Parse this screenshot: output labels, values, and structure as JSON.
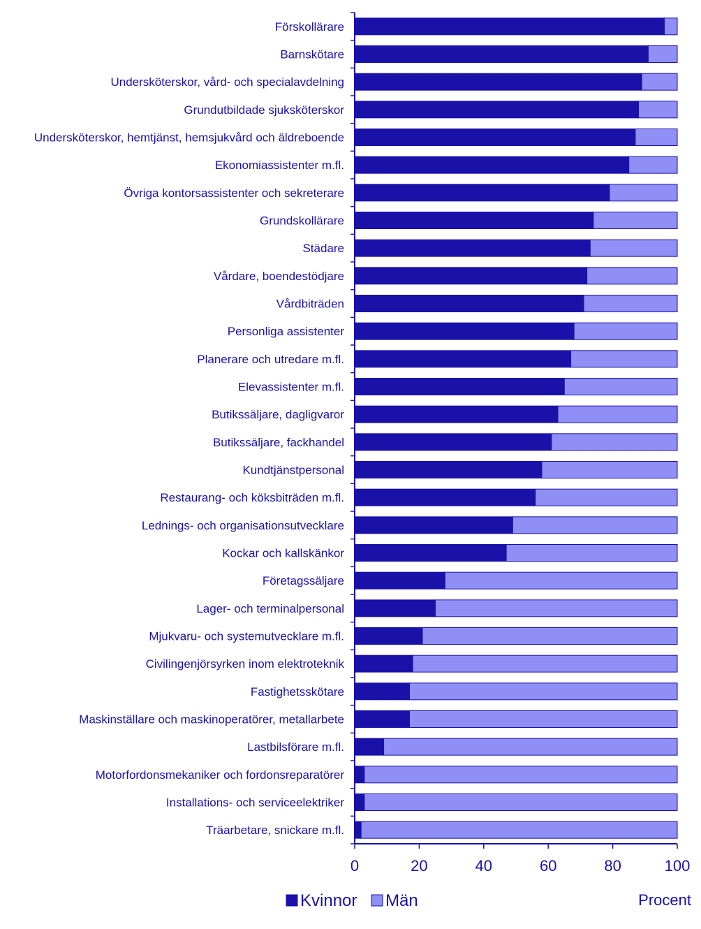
{
  "chart_data": {
    "type": "bar",
    "orientation": "horizontal",
    "stacked": true,
    "title": "",
    "xlabel": "Procent",
    "ylabel": "",
    "xlim": [
      0,
      100
    ],
    "xticks": [
      0,
      20,
      40,
      60,
      80,
      100
    ],
    "grid": false,
    "legend_position": "bottom-left",
    "categories": [
      "Förskollärare",
      "Barnskötare",
      "Undersköterskor, vård- och specialavdelning",
      "Grundutbildade sjuksköterskor",
      "Undersköterskor, hemtjänst, hemsjukvård och äldreboende",
      "Ekonomiassistenter m.fl.",
      "Övriga kontorsassistenter och sekreterare",
      "Grundskollärare",
      "Städare",
      "Vårdare, boendestödjare",
      "Vårdbiträden",
      "Personliga assistenter",
      "Planerare och utredare m.fl.",
      "Elevassistenter m.fl.",
      "Butikssäljare, dagligvaror",
      "Butikssäljare, fackhandel",
      "Kundtjänstpersonal",
      "Restaurang- och köksbiträden m.fl.",
      "Lednings- och organisationsutvecklare",
      "Kockar och kallskänkor",
      "Företagssäljare",
      "Lager- och terminalpersonal",
      "Mjukvaru- och systemutvecklare m.fl.",
      "Civilingenjörsyrken inom elektroteknik",
      "Fastighetsskötare",
      "Maskinställare och maskinoperatörer, metallarbete",
      "Lastbilsförare m.fl.",
      "Motorfordonsmekaniker och fordonsreparatörer",
      "Installations- och serviceelektriker",
      "Träarbetare, snickare m.fl."
    ],
    "series": [
      {
        "name": "Kvinnor",
        "color": "#1a12a8",
        "values": [
          96,
          91,
          89,
          88,
          87,
          85,
          79,
          74,
          73,
          72,
          71,
          68,
          67,
          65,
          63,
          61,
          58,
          56,
          49,
          47,
          28,
          25,
          21,
          18,
          17,
          17,
          9,
          3,
          3,
          2
        ]
      },
      {
        "name": "Män",
        "color": "#8f8ff5",
        "values": [
          4,
          9,
          11,
          12,
          13,
          15,
          21,
          26,
          27,
          28,
          29,
          32,
          33,
          35,
          37,
          39,
          42,
          44,
          51,
          53,
          72,
          75,
          79,
          82,
          83,
          83,
          91,
          97,
          97,
          98
        ]
      }
    ]
  }
}
